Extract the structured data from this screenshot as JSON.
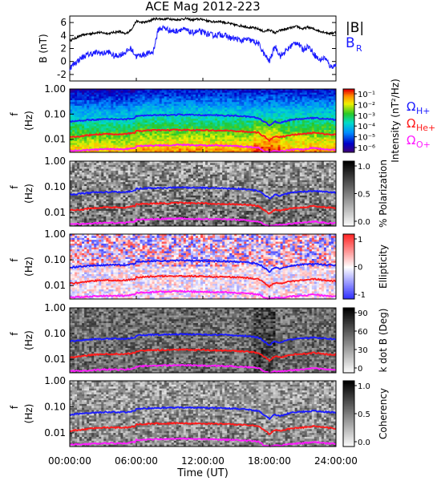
{
  "title": "ACE Mag 2012-223",
  "x_axis": {
    "label": "Time (UT)",
    "ticks": [
      "00:00:00",
      "06:00:00",
      "12:00:00",
      "18:00:00",
      "24:00:00"
    ],
    "range_hours": [
      0,
      24
    ]
  },
  "colors": {
    "total_field": "#000000",
    "radial_field": "#1a1aff",
    "omega_h": "#1a1aff",
    "omega_he": "#ff1a1a",
    "omega_o": "#ff1aff"
  },
  "chart_data": [
    {
      "type": "line",
      "panel": "magnetic-field",
      "ylabel": "B (nT)",
      "ylim": [
        -3,
        7
      ],
      "yticks": [
        "6",
        "4",
        "2",
        "0",
        "-2"
      ],
      "legend": [
        {
          "name": "|B|",
          "color": "#000000"
        },
        {
          "name": "B",
          "subscript": "R",
          "color": "#1a1aff"
        }
      ],
      "x": [
        0,
        0.5,
        1,
        1.5,
        2,
        2.5,
        3,
        3.5,
        4,
        4.5,
        5,
        5.5,
        6,
        6.5,
        7,
        7.5,
        8,
        8.5,
        9,
        9.5,
        10,
        10.5,
        11,
        11.5,
        12,
        12.5,
        13,
        13.5,
        14,
        14.5,
        15,
        15.5,
        16,
        16.5,
        17,
        17.5,
        18,
        18.5,
        19,
        19.5,
        20,
        20.5,
        21,
        21.5,
        22,
        22.5,
        23,
        23.5,
        24
      ],
      "series": [
        {
          "name": "|B|",
          "values": [
            3.2,
            3.6,
            4.0,
            4.2,
            4.3,
            4.5,
            4.4,
            4.3,
            4.5,
            4.6,
            4.2,
            4.8,
            6.2,
            6.0,
            6.1,
            6.5,
            6.6,
            6.5,
            6.6,
            6.4,
            6.5,
            6.6,
            6.4,
            6.5,
            6.5,
            6.2,
            6.1,
            6.2,
            6.0,
            5.8,
            5.6,
            5.5,
            5.3,
            5.2,
            5.0,
            4.6,
            4.9,
            4.4,
            4.8,
            5.0,
            5.2,
            5.4,
            5.0,
            5.3,
            5.0,
            4.7,
            4.5,
            4.3,
            4.5
          ]
        },
        {
          "name": "B_R",
          "values": [
            -1.0,
            -0.2,
            0.5,
            1.0,
            1.2,
            1.4,
            1.2,
            1.5,
            0.8,
            1.0,
            1.4,
            2.0,
            0.8,
            1.0,
            1.2,
            1.4,
            5.0,
            5.2,
            4.8,
            4.6,
            5.0,
            4.8,
            4.4,
            4.6,
            4.5,
            4.2,
            4.0,
            4.2,
            4.0,
            3.6,
            3.5,
            3.2,
            3.4,
            3.1,
            2.8,
            1.2,
            0.0,
            2.4,
            0.8,
            1.6,
            2.5,
            3.0,
            1.8,
            2.4,
            1.2,
            0.2,
            0.6,
            -0.8,
            -0.6
          ]
        }
      ]
    },
    {
      "type": "heatmap",
      "panel": "power-spectrum",
      "ylabel": "f (Hz)",
      "yscale": "log",
      "ylim": [
        0.003,
        1.0
      ],
      "yticks": [
        "1.00",
        "0.10",
        "0.01"
      ],
      "colorbar": {
        "label": "Intensity (nT²/Hz)",
        "ticks": [
          "10⁻¹",
          "10⁻²",
          "10⁻³",
          "10⁻⁴",
          "10⁻⁵",
          "10⁻⁶"
        ],
        "scheme": "rainbow"
      },
      "annotations": [
        {
          "text": "Ω",
          "sub": "H+",
          "color": "#1a1aff"
        },
        {
          "text": "Ω",
          "sub": "He+",
          "color": "#ff1a1a"
        },
        {
          "text": "Ω",
          "sub": "O+",
          "color": "#ff1aff"
        }
      ]
    },
    {
      "type": "heatmap",
      "panel": "polarization",
      "ylabel": "f (Hz)",
      "yscale": "log",
      "ylim": [
        0.003,
        1.0
      ],
      "yticks": [
        "1.00",
        "0.10",
        "0.01"
      ],
      "colorbar": {
        "label": "% Polarization",
        "ticks": [
          "1.0",
          "0.5",
          "0.0"
        ],
        "scheme": "gray"
      }
    },
    {
      "type": "heatmap",
      "panel": "ellipticity",
      "ylabel": "f (Hz)",
      "yscale": "log",
      "ylim": [
        0.003,
        1.0
      ],
      "yticks": [
        "1.00",
        "0.10",
        "0.01"
      ],
      "colorbar": {
        "label": "Ellipticity",
        "ticks": [
          "1",
          "0",
          "-1"
        ],
        "scheme": "bwr"
      }
    },
    {
      "type": "heatmap",
      "panel": "wave-normal-angle",
      "ylabel": "f (Hz)",
      "yscale": "log",
      "ylim": [
        0.003,
        1.0
      ],
      "yticks": [
        "1.00",
        "0.10",
        "0.01"
      ],
      "colorbar": {
        "label": "k dot B (Deg)",
        "ticks": [
          "90",
          "60",
          "30",
          "0"
        ],
        "scheme": "gray"
      }
    },
    {
      "type": "heatmap",
      "panel": "coherency",
      "ylabel": "f (Hz)",
      "yscale": "log",
      "ylim": [
        0.003,
        1.0
      ],
      "yticks": [
        "1.00",
        "0.10",
        "0.01"
      ],
      "colorbar": {
        "label": "Coherency",
        "ticks": [
          "1.0",
          "0.5",
          "0.0"
        ],
        "scheme": "gray"
      }
    }
  ],
  "gyrofrequency_curves": {
    "x": [
      0,
      1,
      2,
      3,
      4,
      5,
      5.9,
      6,
      7,
      8,
      9,
      10,
      11,
      12,
      13,
      14,
      15,
      16,
      17,
      17.5,
      18,
      18.5,
      19,
      20,
      21,
      22,
      23,
      24
    ],
    "omega_h_hz": [
      0.05,
      0.055,
      0.06,
      0.062,
      0.064,
      0.062,
      0.07,
      0.085,
      0.088,
      0.09,
      0.092,
      0.095,
      0.093,
      0.092,
      0.09,
      0.088,
      0.085,
      0.08,
      0.07,
      0.05,
      0.035,
      0.05,
      0.045,
      0.06,
      0.065,
      0.07,
      0.065,
      0.06
    ],
    "omega_he_hz": [
      0.012,
      0.013,
      0.015,
      0.016,
      0.016,
      0.016,
      0.018,
      0.021,
      0.022,
      0.023,
      0.023,
      0.024,
      0.023,
      0.023,
      0.022,
      0.022,
      0.021,
      0.02,
      0.018,
      0.013,
      0.009,
      0.013,
      0.012,
      0.015,
      0.016,
      0.018,
      0.016,
      0.015
    ],
    "omega_o_hz": [
      0.0035,
      0.0036,
      0.0038,
      0.004,
      0.004,
      0.004,
      0.0045,
      0.0053,
      0.0055,
      0.0057,
      0.0058,
      0.006,
      0.0058,
      0.0057,
      0.0056,
      0.0055,
      0.0053,
      0.005,
      0.0046,
      0.0034,
      0.003,
      0.0034,
      0.0033,
      0.0038,
      0.004,
      0.0045,
      0.004,
      0.0038
    ]
  }
}
